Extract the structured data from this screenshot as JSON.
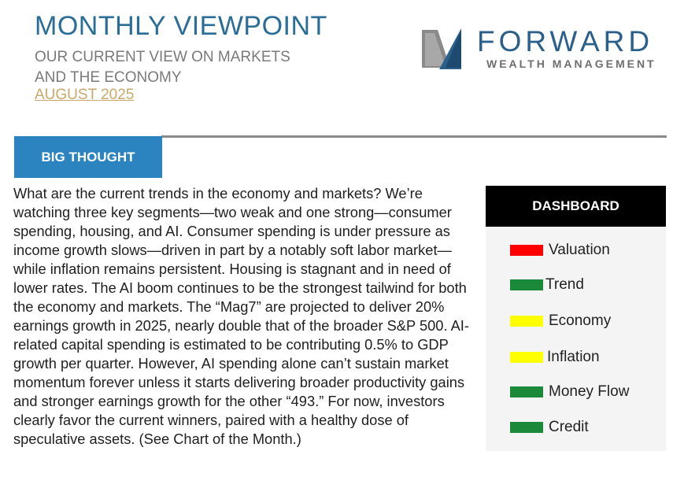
{
  "header": {
    "title": "MONTHLY VIEWPOINT",
    "subtitle_line1": "OUR CURRENT VIEW ON MARKETS",
    "subtitle_line2": "AND THE ECONOMY",
    "date": "AUGUST 2025"
  },
  "logo": {
    "name": "FORWARD",
    "tagline": "WEALTH MANAGEMENT",
    "icon": "forward-mark-icon"
  },
  "section": {
    "label": "BIG THOUGHT",
    "color": "#2b84bf"
  },
  "body_paragraph": "What are the current trends in the economy and markets? We’re watching three key segments—two weak and one strong—consumer spending, housing, and AI. Consumer spending is under pressure as income growth slows—driven in part by a notably soft labor market—while inflation remains persistent. Housing is stagnant and in need of lower rates. The AI boom continues to be the strongest tailwind for both the economy and markets. The “Mag7” are projected to deliver 20% earnings growth in 2025, nearly double that of the broader S&P 500. AI-related capital spending is estimated to be contributing 0.5% to GDP growth per quarter. However, AI spending alone can’t sustain market momentum forever unless it starts delivering broader productivity gains and stronger earnings growth for the other “493.” For now, investors clearly favor the current winners, paired with a healthy dose of speculative assets. (See Chart of the Month.)",
  "dashboard": {
    "title": "DASHBOARD",
    "items": [
      {
        "label": "Valuation",
        "color": "#ff0000"
      },
      {
        "label": "Trend",
        "color": "#1a8a3a"
      },
      {
        "label": "Economy",
        "color": "#ffff00"
      },
      {
        "label": "Inflation",
        "color": "#ffff00"
      },
      {
        "label": "Money Flow",
        "color": "#1a8a3a"
      },
      {
        "label": "Credit",
        "color": "#1a8a3a"
      }
    ]
  }
}
